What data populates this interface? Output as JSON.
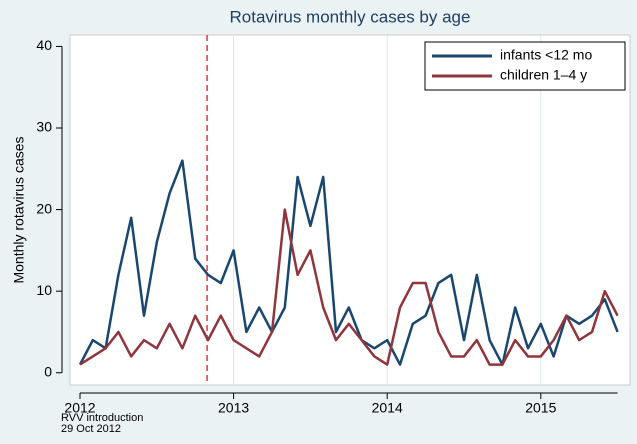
{
  "chart_data": {
    "type": "line",
    "title": "Rotavirus monthly cases by age",
    "y_label": "Monthly rotavirus cases",
    "categories": [
      "2012",
      null,
      null,
      null,
      null,
      null,
      null,
      null,
      null,
      null,
      null,
      null,
      "2013",
      null,
      null,
      null,
      null,
      null,
      null,
      null,
      null,
      null,
      null,
      null,
      "2014",
      null,
      null,
      null,
      null,
      null,
      null,
      null,
      null,
      null,
      null,
      null,
      "2015",
      null,
      null,
      null,
      null,
      null,
      null
    ],
    "series": [
      {
        "name": "infants <12 mo",
        "color": "#1a476f",
        "values": [
          1,
          4,
          3,
          12,
          19,
          7,
          16,
          22,
          26,
          14,
          12,
          11,
          15,
          5,
          8,
          5,
          8,
          24,
          18,
          24,
          5,
          8,
          4,
          3,
          4,
          1,
          6,
          7,
          11,
          12,
          4,
          12,
          4,
          1,
          8,
          3,
          6,
          2,
          7,
          6,
          7,
          9,
          5
        ]
      },
      {
        "name": "children 1–4 y",
        "color": "#90353b",
        "values": [
          1,
          2,
          3,
          5,
          2,
          4,
          3,
          6,
          3,
          7,
          4,
          7,
          4,
          3,
          2,
          5,
          20,
          12,
          15,
          8,
          4,
          6,
          4,
          2,
          1,
          8,
          11,
          11,
          5,
          2,
          2,
          4,
          1,
          1,
          4,
          2,
          2,
          4,
          7,
          4,
          5,
          10,
          7
        ]
      }
    ],
    "ylim": [
      -1.5,
      41.4
    ],
    "yticks": [
      0,
      10,
      20,
      30,
      40
    ],
    "grid": true,
    "legend": "top-right",
    "vline": {
      "x": 9.93,
      "color": "#e8383d",
      "label": [
        "RVV introduction",
        "29 Oct 2012"
      ]
    }
  }
}
